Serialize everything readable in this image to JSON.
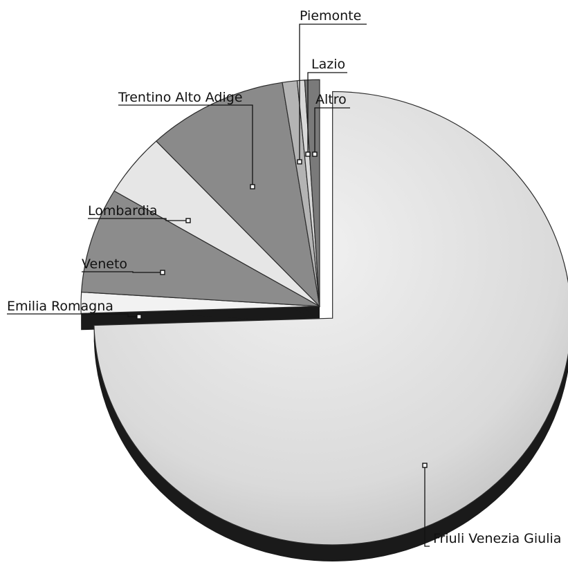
{
  "chart_data": {
    "type": "pie",
    "style": "3d exploded",
    "title": "",
    "categories": [
      "Friuli Venezia Giulia",
      "Emilia Romagna",
      "Veneto",
      "Lombardia",
      "Trentino Alto Adige",
      "Piemonte",
      "Lazio",
      "Altro"
    ],
    "values": [
      74.5,
      1.5,
      7.5,
      4.5,
      9.5,
      1.0,
      0.5,
      1.0
    ],
    "unit": "%",
    "legend": "none",
    "slice_colors": [
      "#e4e4e4",
      "#f2f2f2",
      "#8c8c8c",
      "#e6e6e6",
      "#8a8a8a",
      "#b4b4b4",
      "#d8d8d8",
      "#7a7a7a"
    ],
    "side_color": "#1a1a1a",
    "outline_color": "#2a2a2a"
  }
}
